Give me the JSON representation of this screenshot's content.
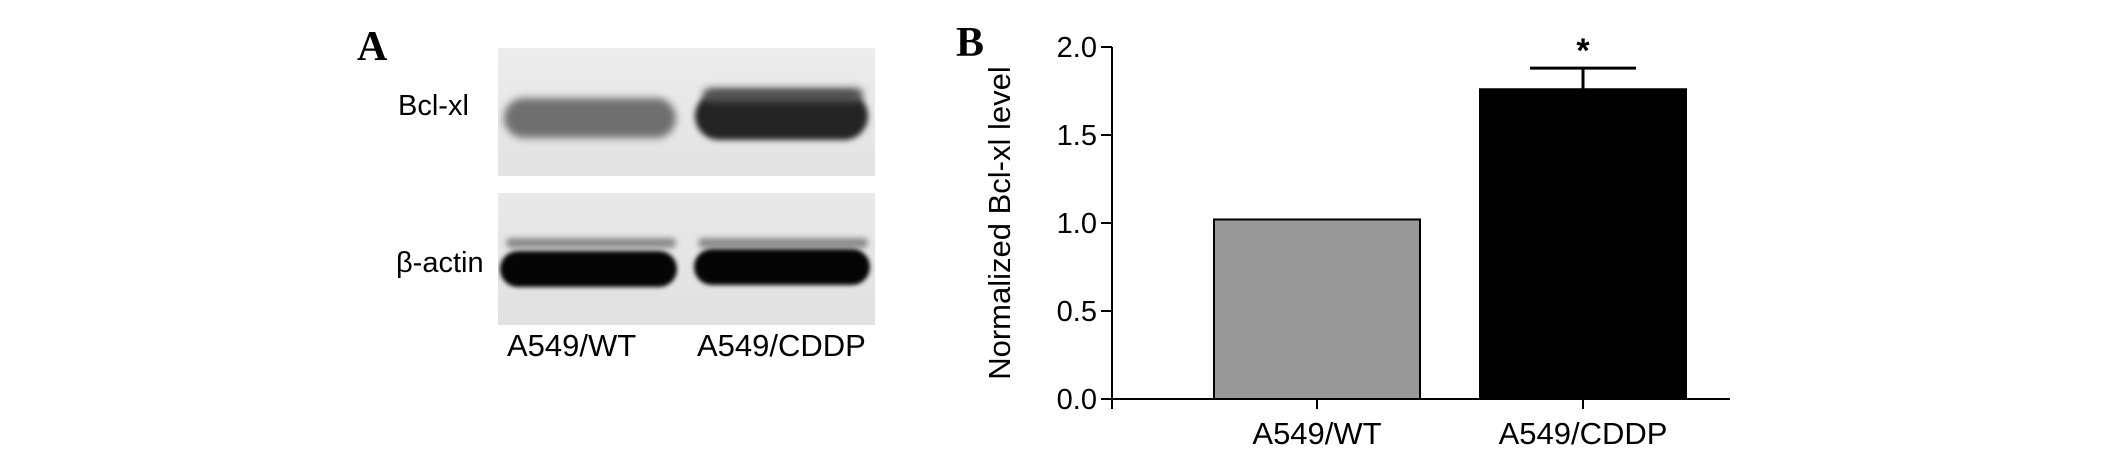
{
  "panelA": {
    "letter": "A",
    "row_labels": [
      "Bcl-xl",
      "β-actin"
    ],
    "lane_labels": [
      "A549/WT",
      "A549/CDDP"
    ]
  },
  "panelB": {
    "letter": "B"
  },
  "chart_data": {
    "type": "bar",
    "categories": [
      "A549/WT",
      "A549/CDDP"
    ],
    "values": [
      1.02,
      1.76
    ],
    "error_up": [
      0,
      0.12
    ],
    "colors": [
      "#999999",
      "#000000"
    ],
    "significance": [
      "",
      "*"
    ],
    "ylabel": "Normalized Bcl-xl level",
    "xlabel": "",
    "ylim": [
      0,
      2.0
    ],
    "yticks": [
      "0.0",
      "0.5",
      "1.0",
      "1.5",
      "2.0"
    ],
    "grid": false
  }
}
